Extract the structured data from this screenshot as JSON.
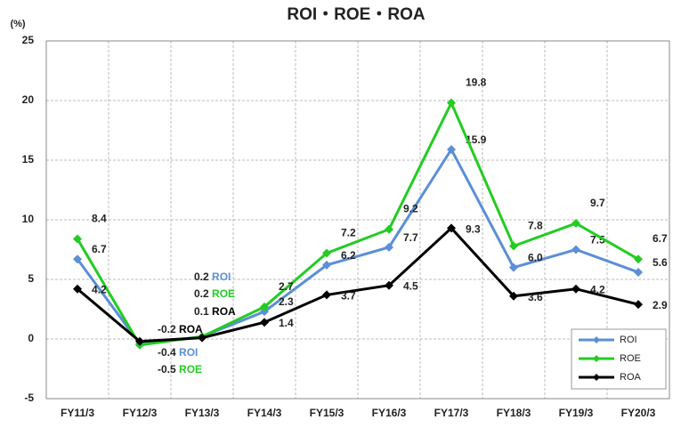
{
  "chart_data": {
    "type": "line",
    "title": "ROI・ROE・ROA",
    "y_label": "(%)",
    "categories": [
      "FY11/3",
      "FY12/3",
      "FY13/3",
      "FY14/3",
      "FY15/3",
      "FY16/3",
      "FY17/3",
      "FY18/3",
      "FY19/3",
      "FY20/3"
    ],
    "series": [
      {
        "name": "ROI",
        "color": "#5b8fd6",
        "values": [
          6.7,
          -0.4,
          0.2,
          2.3,
          6.2,
          7.7,
          15.9,
          6.0,
          7.5,
          5.6
        ],
        "value_labels": [
          "6.7",
          "-0.4",
          "0.2",
          "2.3",
          "6.2",
          "7.7",
          "15.9",
          "6.0",
          "7.5",
          "5.6"
        ]
      },
      {
        "name": "ROE",
        "color": "#22cc22",
        "values": [
          8.4,
          -0.5,
          0.2,
          2.7,
          7.2,
          9.2,
          19.8,
          7.8,
          9.7,
          6.7
        ],
        "value_labels": [
          "8.4",
          "-0.5",
          "0.2",
          "2.7",
          "7.2",
          "9.2",
          "19.8",
          "7.8",
          "9.7",
          "6.7"
        ]
      },
      {
        "name": "ROA",
        "color": "#000000",
        "values": [
          4.2,
          -0.2,
          0.1,
          1.4,
          3.7,
          4.5,
          9.3,
          3.6,
          4.2,
          2.9
        ],
        "value_labels": [
          "4.2",
          "-0.2",
          "0.1",
          "1.4",
          "3.7",
          "4.5",
          "9.3",
          "3.6",
          "4.2",
          "2.9"
        ]
      }
    ],
    "ylim": [
      -5,
      25
    ],
    "yticks": [
      -5,
      0,
      5,
      10,
      15,
      20,
      25
    ],
    "grid": true,
    "legend": "lower right"
  }
}
